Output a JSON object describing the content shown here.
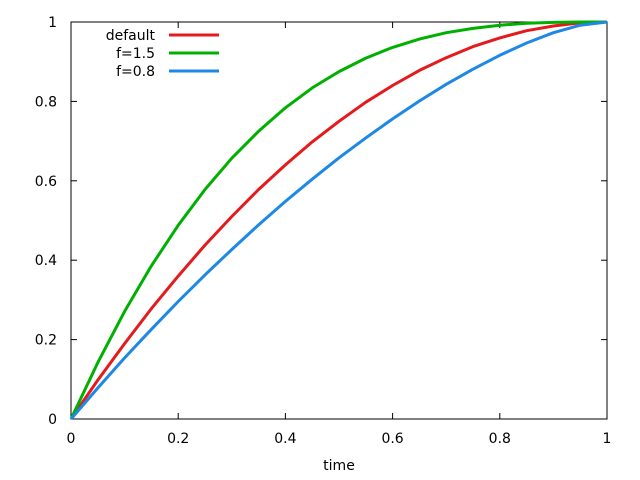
{
  "chart_data": {
    "type": "line",
    "title": "",
    "xlabel": "time",
    "ylabel": "",
    "xlim": [
      0,
      1
    ],
    "ylim": [
      0,
      1
    ],
    "grid": false,
    "legend_position": "top-left",
    "x_ticks": [
      "0",
      "0.2",
      "0.4",
      "0.6",
      "0.8",
      "1"
    ],
    "y_ticks": [
      "0",
      "0.2",
      "0.4",
      "0.6",
      "0.8",
      "1"
    ],
    "x": [
      0,
      0.05,
      0.1,
      0.15,
      0.2,
      0.25,
      0.3,
      0.35,
      0.4,
      0.45,
      0.5,
      0.55,
      0.6,
      0.65,
      0.7,
      0.75,
      0.8,
      0.85,
      0.9,
      0.95,
      1
    ],
    "series": [
      {
        "name": "default",
        "color": "#e41a1c",
        "values": [
          0,
          0.098,
          0.19,
          0.278,
          0.36,
          0.438,
          0.51,
          0.578,
          0.64,
          0.698,
          0.75,
          0.798,
          0.84,
          0.878,
          0.91,
          0.938,
          0.96,
          0.978,
          0.99,
          0.998,
          1
        ]
      },
      {
        "name": "f=1.5",
        "color": "#00b000",
        "values": [
          0,
          0.142,
          0.271,
          0.386,
          0.488,
          0.578,
          0.657,
          0.725,
          0.784,
          0.834,
          0.875,
          0.909,
          0.936,
          0.957,
          0.973,
          0.984,
          0.992,
          0.997,
          0.999,
          1.0,
          1
        ]
      },
      {
        "name": "f=0.8",
        "color": "#1e88e5",
        "values": [
          0,
          0.078,
          0.154,
          0.226,
          0.296,
          0.363,
          0.427,
          0.489,
          0.548,
          0.604,
          0.658,
          0.708,
          0.756,
          0.801,
          0.843,
          0.881,
          0.916,
          0.947,
          0.973,
          0.992,
          1
        ]
      }
    ]
  }
}
